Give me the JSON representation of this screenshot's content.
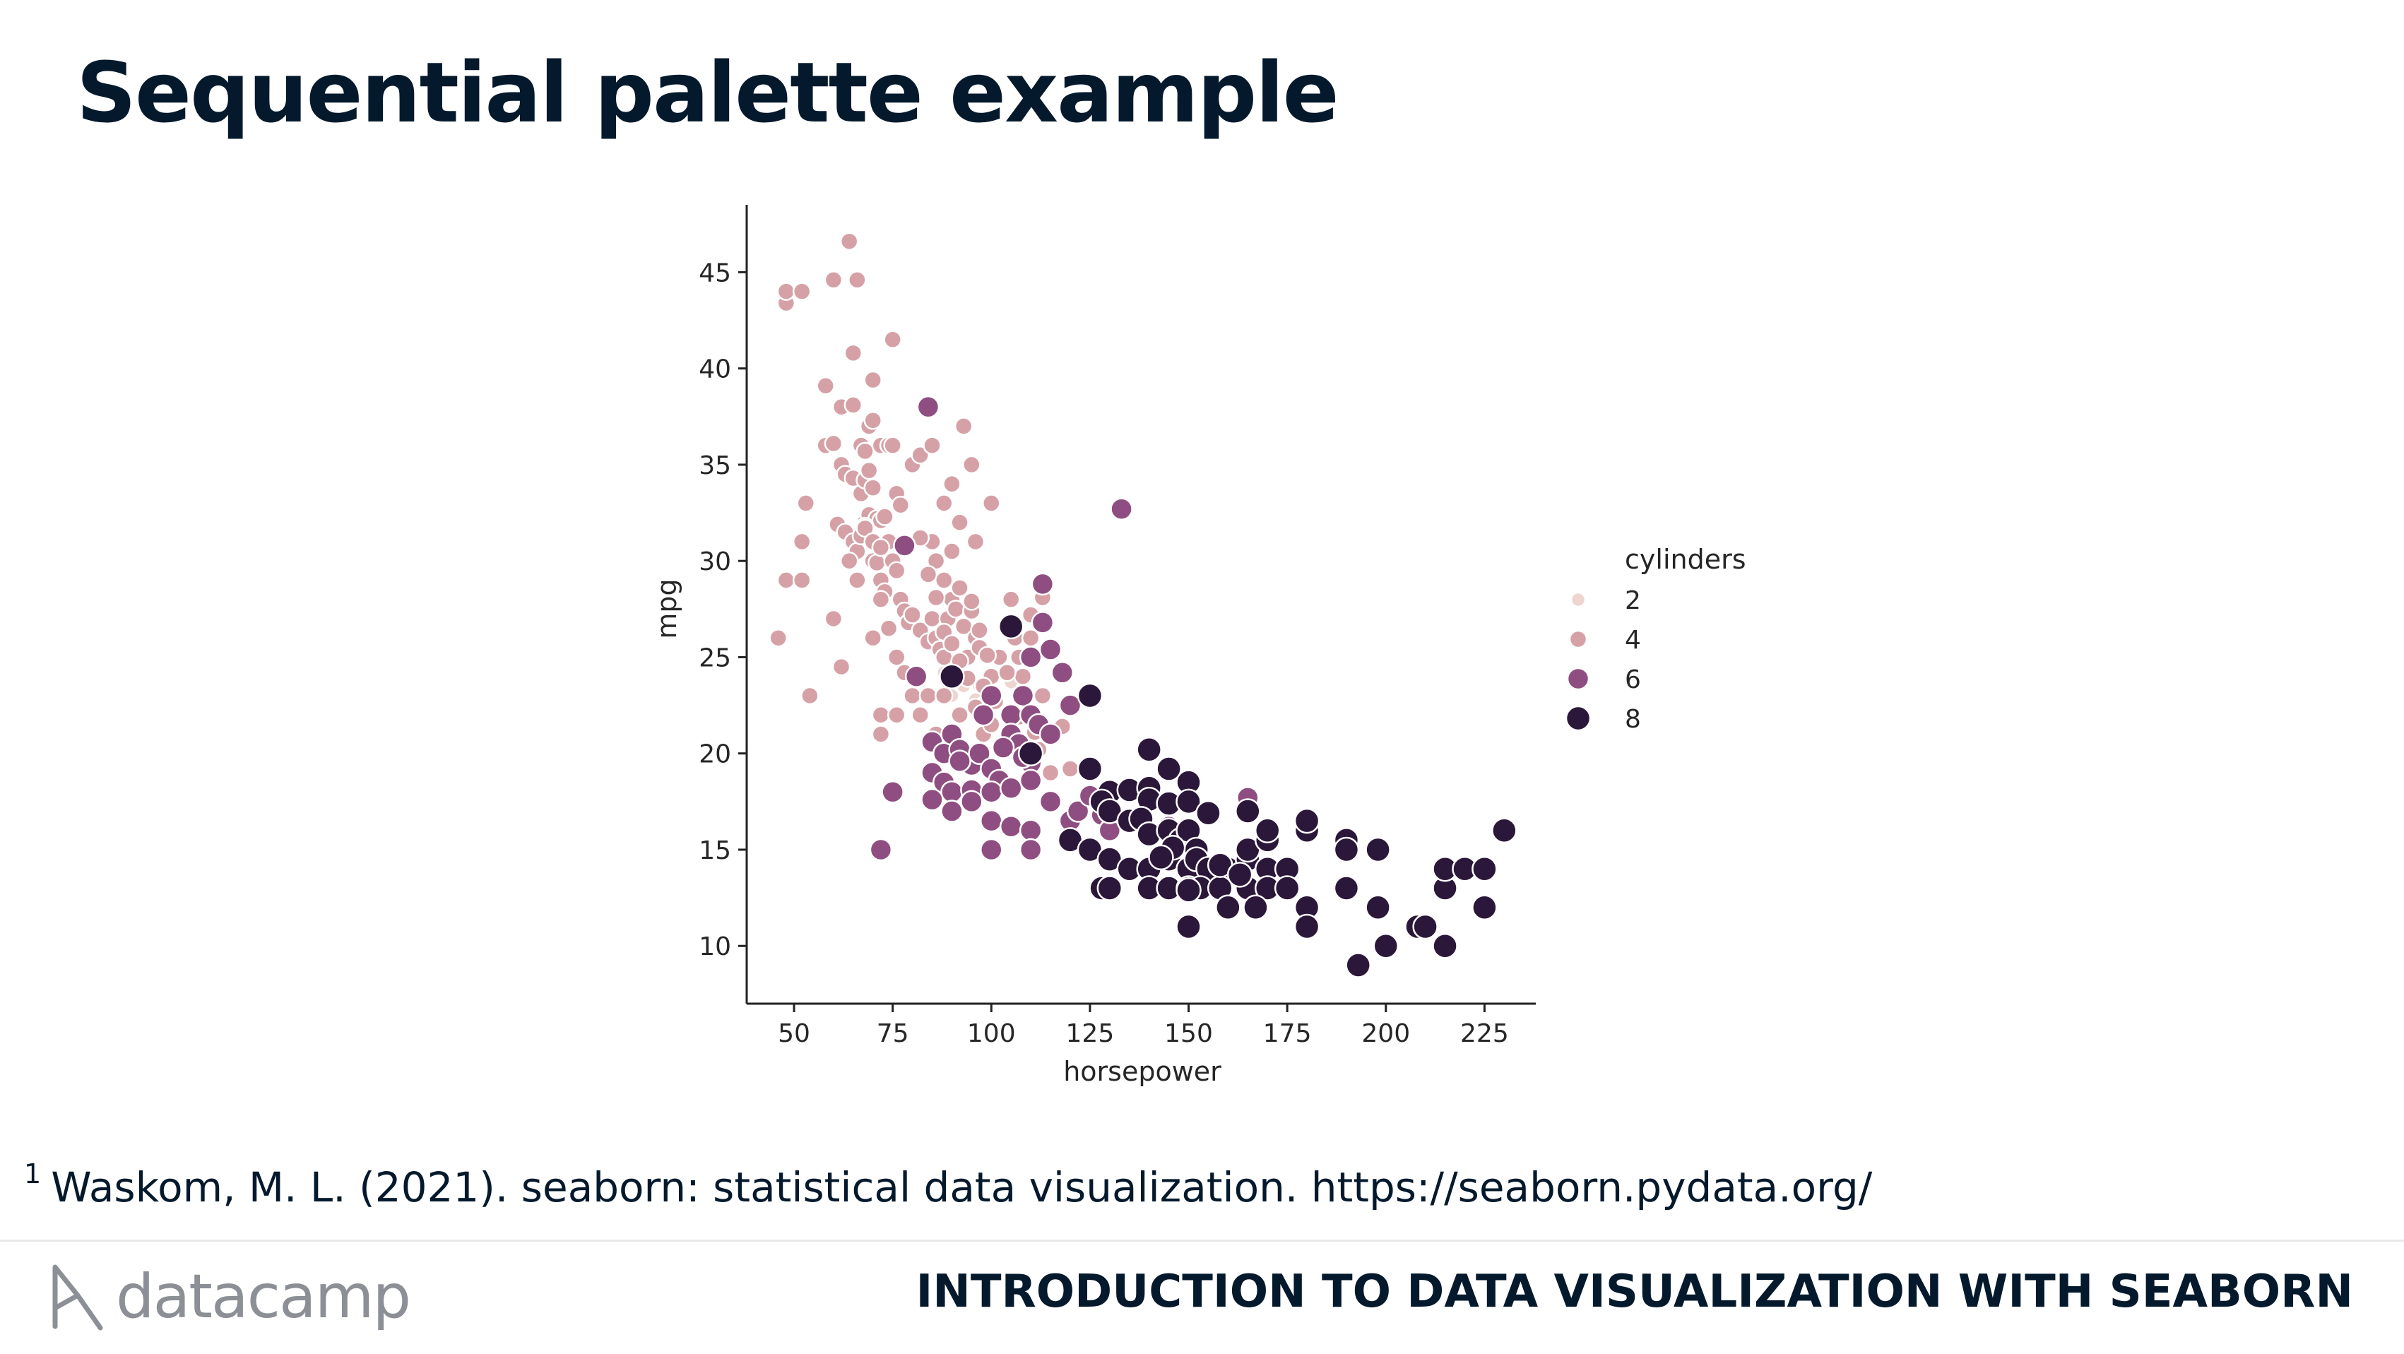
{
  "slide": {
    "title": "Sequential palette example",
    "footnote_marker": "1",
    "footnote_text": "Waskom, M. L. (2021). seaborn: statistical data visualization. https://seaborn.pydata.org/",
    "logo_text": "datacamp",
    "course_title": "INTRODUCTION TO DATA VISUALIZATION WITH SEABORN"
  },
  "colors": {
    "cyl2": "#eed6cf",
    "cyl4": "#d5a1a6",
    "cyl6": "#8f4e81",
    "cyl8": "#2b1739",
    "text": "#05192d"
  },
  "chart_data": {
    "type": "scatter",
    "title": "",
    "xlabel": "horsepower",
    "ylabel": "mpg",
    "xlim": [
      38,
      238
    ],
    "ylim": [
      7,
      48.5
    ],
    "xticks": [
      50,
      75,
      100,
      125,
      150,
      175,
      200,
      225
    ],
    "yticks": [
      10,
      15,
      20,
      25,
      30,
      35,
      40,
      45
    ],
    "legend": {
      "title": "cylinders",
      "placement": "right",
      "entries": [
        "2",
        "4",
        "6",
        "8"
      ]
    },
    "grid": false,
    "series": [
      {
        "name": "2",
        "points": [
          [
            90,
            23
          ],
          [
            93,
            23.5
          ],
          [
            97,
            23.5
          ],
          [
            100,
            24
          ],
          [
            105,
            23.7
          ],
          [
            88,
            24.2
          ],
          [
            96,
            22.8
          ]
        ]
      },
      {
        "name": "4",
        "points": [
          [
            46,
            26
          ],
          [
            48,
            43.4
          ],
          [
            48,
            44
          ],
          [
            52,
            44
          ],
          [
            48,
            29
          ],
          [
            52,
            29
          ],
          [
            54,
            23
          ],
          [
            53,
            33
          ],
          [
            52,
            31
          ],
          [
            58,
            36
          ],
          [
            60,
            44.6
          ],
          [
            64,
            46.6
          ],
          [
            65,
            40.8
          ],
          [
            66,
            44.6
          ],
          [
            67,
            34.1
          ],
          [
            68,
            32
          ],
          [
            69,
            32.4
          ],
          [
            70,
            39.4
          ],
          [
            75,
            41.5
          ],
          [
            58,
            39.1
          ],
          [
            62,
            38
          ],
          [
            65,
            38.1
          ],
          [
            67,
            36
          ],
          [
            68,
            35.7
          ],
          [
            69,
            37
          ],
          [
            70,
            37.3
          ],
          [
            72,
            36
          ],
          [
            74,
            36
          ],
          [
            75,
            36
          ],
          [
            60,
            36.1
          ],
          [
            62,
            35
          ],
          [
            63,
            34.5
          ],
          [
            65,
            34.3
          ],
          [
            67,
            33.5
          ],
          [
            68,
            34.2
          ],
          [
            69,
            34.7
          ],
          [
            70,
            33.8
          ],
          [
            71,
            32.2
          ],
          [
            72,
            32.1
          ],
          [
            61,
            31.9
          ],
          [
            63,
            31.5
          ],
          [
            65,
            31
          ],
          [
            66,
            30.5
          ],
          [
            67,
            31.3
          ],
          [
            68,
            31.8
          ],
          [
            70,
            30
          ],
          [
            71,
            29.9
          ],
          [
            72,
            29
          ],
          [
            73,
            28.4
          ],
          [
            74,
            31
          ],
          [
            75,
            30
          ],
          [
            76,
            29.5
          ],
          [
            77,
            28
          ],
          [
            78,
            27.4
          ],
          [
            79,
            26.8
          ],
          [
            80,
            27.2
          ],
          [
            82,
            26.4
          ],
          [
            84,
            25.8
          ],
          [
            85,
            27
          ],
          [
            86,
            26
          ],
          [
            87,
            25.4
          ],
          [
            88,
            25
          ],
          [
            89,
            27
          ],
          [
            90,
            28
          ],
          [
            91,
            27.5
          ],
          [
            92,
            24
          ],
          [
            93,
            26.6
          ],
          [
            94,
            25
          ],
          [
            95,
            27.4
          ],
          [
            96,
            26
          ],
          [
            97,
            25.5
          ],
          [
            98,
            22.5
          ],
          [
            100,
            24
          ],
          [
            100,
            33
          ],
          [
            102,
            25
          ],
          [
            105,
            28
          ],
          [
            106,
            26
          ],
          [
            107,
            25
          ],
          [
            108,
            24
          ],
          [
            110,
            26
          ],
          [
            112,
            27
          ],
          [
            113,
            23
          ],
          [
            115,
            25.5
          ],
          [
            85,
            31
          ],
          [
            86,
            30
          ],
          [
            88,
            29
          ],
          [
            90,
            30.5
          ],
          [
            92,
            32
          ],
          [
            95,
            35
          ],
          [
            80,
            35
          ],
          [
            82,
            35.5
          ],
          [
            85,
            36
          ],
          [
            88,
            33
          ],
          [
            90,
            34
          ],
          [
            93,
            37
          ],
          [
            96,
            31
          ],
          [
            70,
            26
          ],
          [
            72,
            28
          ],
          [
            74,
            26.5
          ],
          [
            76,
            25
          ],
          [
            78,
            24.2
          ],
          [
            72,
            22
          ],
          [
            76,
            22
          ],
          [
            72,
            21
          ],
          [
            80,
            23
          ],
          [
            82,
            22
          ],
          [
            84,
            23
          ],
          [
            86,
            21
          ],
          [
            88,
            23
          ],
          [
            90,
            21
          ],
          [
            92,
            22
          ],
          [
            94,
            20
          ],
          [
            96,
            20
          ],
          [
            98,
            21
          ],
          [
            100,
            21.5
          ],
          [
            62,
            24.5
          ],
          [
            60,
            27
          ],
          [
            64,
            30
          ],
          [
            66,
            29
          ],
          [
            68,
            31.7
          ],
          [
            70,
            31
          ],
          [
            72,
            30.7
          ],
          [
            73,
            32.3
          ],
          [
            76,
            33.5
          ],
          [
            77,
            32.9
          ],
          [
            82,
            31.2
          ],
          [
            84,
            29.3
          ],
          [
            86,
            28.1
          ],
          [
            88,
            26.3
          ],
          [
            90,
            25.7
          ],
          [
            92,
            24.8
          ],
          [
            94,
            23.9
          ],
          [
            96,
            22.4
          ],
          [
            98,
            23.5
          ],
          [
            92,
            28.6
          ],
          [
            95,
            27.9
          ],
          [
            97,
            26.4
          ],
          [
            99,
            25.1
          ],
          [
            101,
            22.7
          ],
          [
            104,
            24.2
          ],
          [
            107,
            21.9
          ],
          [
            109,
            20.6
          ],
          [
            111,
            21.1
          ],
          [
            112,
            20.2
          ],
          [
            115,
            19
          ],
          [
            120,
            19.2
          ],
          [
            118,
            21.4
          ],
          [
            110,
            27.2
          ],
          [
            113,
            28.1
          ]
        ]
      },
      {
        "name": "6",
        "points": [
          [
            84,
            38
          ],
          [
            133,
            32.7
          ],
          [
            78,
            30.8
          ],
          [
            113,
            28.8
          ],
          [
            113,
            26.8
          ],
          [
            110,
            25
          ],
          [
            115,
            25.4
          ],
          [
            118,
            24.2
          ],
          [
            81,
            24
          ],
          [
            90,
            24
          ],
          [
            100,
            23
          ],
          [
            108,
            23
          ],
          [
            105,
            22
          ],
          [
            110,
            22
          ],
          [
            112,
            21.5
          ],
          [
            115,
            21
          ],
          [
            120,
            22.5
          ],
          [
            85,
            20.6
          ],
          [
            88,
            20
          ],
          [
            90,
            21
          ],
          [
            92,
            20.2
          ],
          [
            95,
            19.4
          ],
          [
            97,
            20
          ],
          [
            100,
            19.2
          ],
          [
            102,
            18.6
          ],
          [
            105,
            21
          ],
          [
            107,
            20.5
          ],
          [
            110,
            19.5
          ],
          [
            85,
            19
          ],
          [
            88,
            18.5
          ],
          [
            90,
            18
          ],
          [
            95,
            18.1
          ],
          [
            100,
            18
          ],
          [
            105,
            18.2
          ],
          [
            110,
            18.6
          ],
          [
            115,
            17.5
          ],
          [
            85,
            17.6
          ],
          [
            90,
            17
          ],
          [
            95,
            17.5
          ],
          [
            100,
            16.5
          ],
          [
            105,
            16.2
          ],
          [
            110,
            16
          ],
          [
            100,
            15
          ],
          [
            110,
            15
          ],
          [
            120,
            16.5
          ],
          [
            75,
            18
          ],
          [
            72,
            15
          ],
          [
            122,
            17
          ],
          [
            125,
            17.8
          ],
          [
            128,
            16.8
          ],
          [
            165,
            17.7
          ],
          [
            145,
            16.2
          ],
          [
            130,
            16
          ],
          [
            92,
            19.6
          ],
          [
            98,
            22
          ],
          [
            103,
            20.3
          ],
          [
            108,
            19.8
          ]
        ]
      },
      {
        "name": "8",
        "points": [
          [
            105,
            26.6
          ],
          [
            125,
            23
          ],
          [
            90,
            24
          ],
          [
            110,
            20
          ],
          [
            125,
            19.2
          ],
          [
            130,
            18
          ],
          [
            135,
            18.1
          ],
          [
            140,
            18.2
          ],
          [
            140,
            20.2
          ],
          [
            145,
            19.2
          ],
          [
            150,
            18.5
          ],
          [
            140,
            17.6
          ],
          [
            145,
            17.4
          ],
          [
            150,
            17.5
          ],
          [
            155,
            16.9
          ],
          [
            165,
            17
          ],
          [
            128,
            17.5
          ],
          [
            130,
            17
          ],
          [
            135,
            16.5
          ],
          [
            138,
            16.6
          ],
          [
            140,
            15.8
          ],
          [
            145,
            16
          ],
          [
            148,
            15.5
          ],
          [
            150,
            16
          ],
          [
            152,
            15
          ],
          [
            120,
            15.5
          ],
          [
            125,
            15
          ],
          [
            130,
            14.5
          ],
          [
            135,
            14
          ],
          [
            140,
            14
          ],
          [
            145,
            14.5
          ],
          [
            150,
            14
          ],
          [
            152,
            14.5
          ],
          [
            155,
            14
          ],
          [
            160,
            14
          ],
          [
            165,
            14.5
          ],
          [
            170,
            14
          ],
          [
            175,
            14
          ],
          [
            128,
            13
          ],
          [
            130,
            13
          ],
          [
            140,
            13
          ],
          [
            145,
            13
          ],
          [
            150,
            13
          ],
          [
            153,
            13
          ],
          [
            158,
            13
          ],
          [
            165,
            13
          ],
          [
            170,
            13
          ],
          [
            175,
            13
          ],
          [
            150,
            12.9
          ],
          [
            160,
            12
          ],
          [
            167,
            12
          ],
          [
            180,
            12
          ],
          [
            150,
            11
          ],
          [
            180,
            11
          ],
          [
            165,
            15
          ],
          [
            170,
            15.5
          ],
          [
            170,
            16
          ],
          [
            180,
            16
          ],
          [
            180,
            16.5
          ],
          [
            190,
            15.5
          ],
          [
            190,
            15
          ],
          [
            198,
            15
          ],
          [
            190,
            13
          ],
          [
            198,
            12
          ],
          [
            193,
            9
          ],
          [
            200,
            10
          ],
          [
            208,
            11
          ],
          [
            210,
            11
          ],
          [
            215,
            10
          ],
          [
            215,
            13
          ],
          [
            215,
            14
          ],
          [
            220,
            14
          ],
          [
            225,
            14
          ],
          [
            225,
            12
          ],
          [
            230,
            16
          ],
          [
            158,
            14.2
          ],
          [
            163,
            13.7
          ],
          [
            146,
            15.1
          ],
          [
            143,
            14.6
          ]
        ]
      }
    ]
  }
}
